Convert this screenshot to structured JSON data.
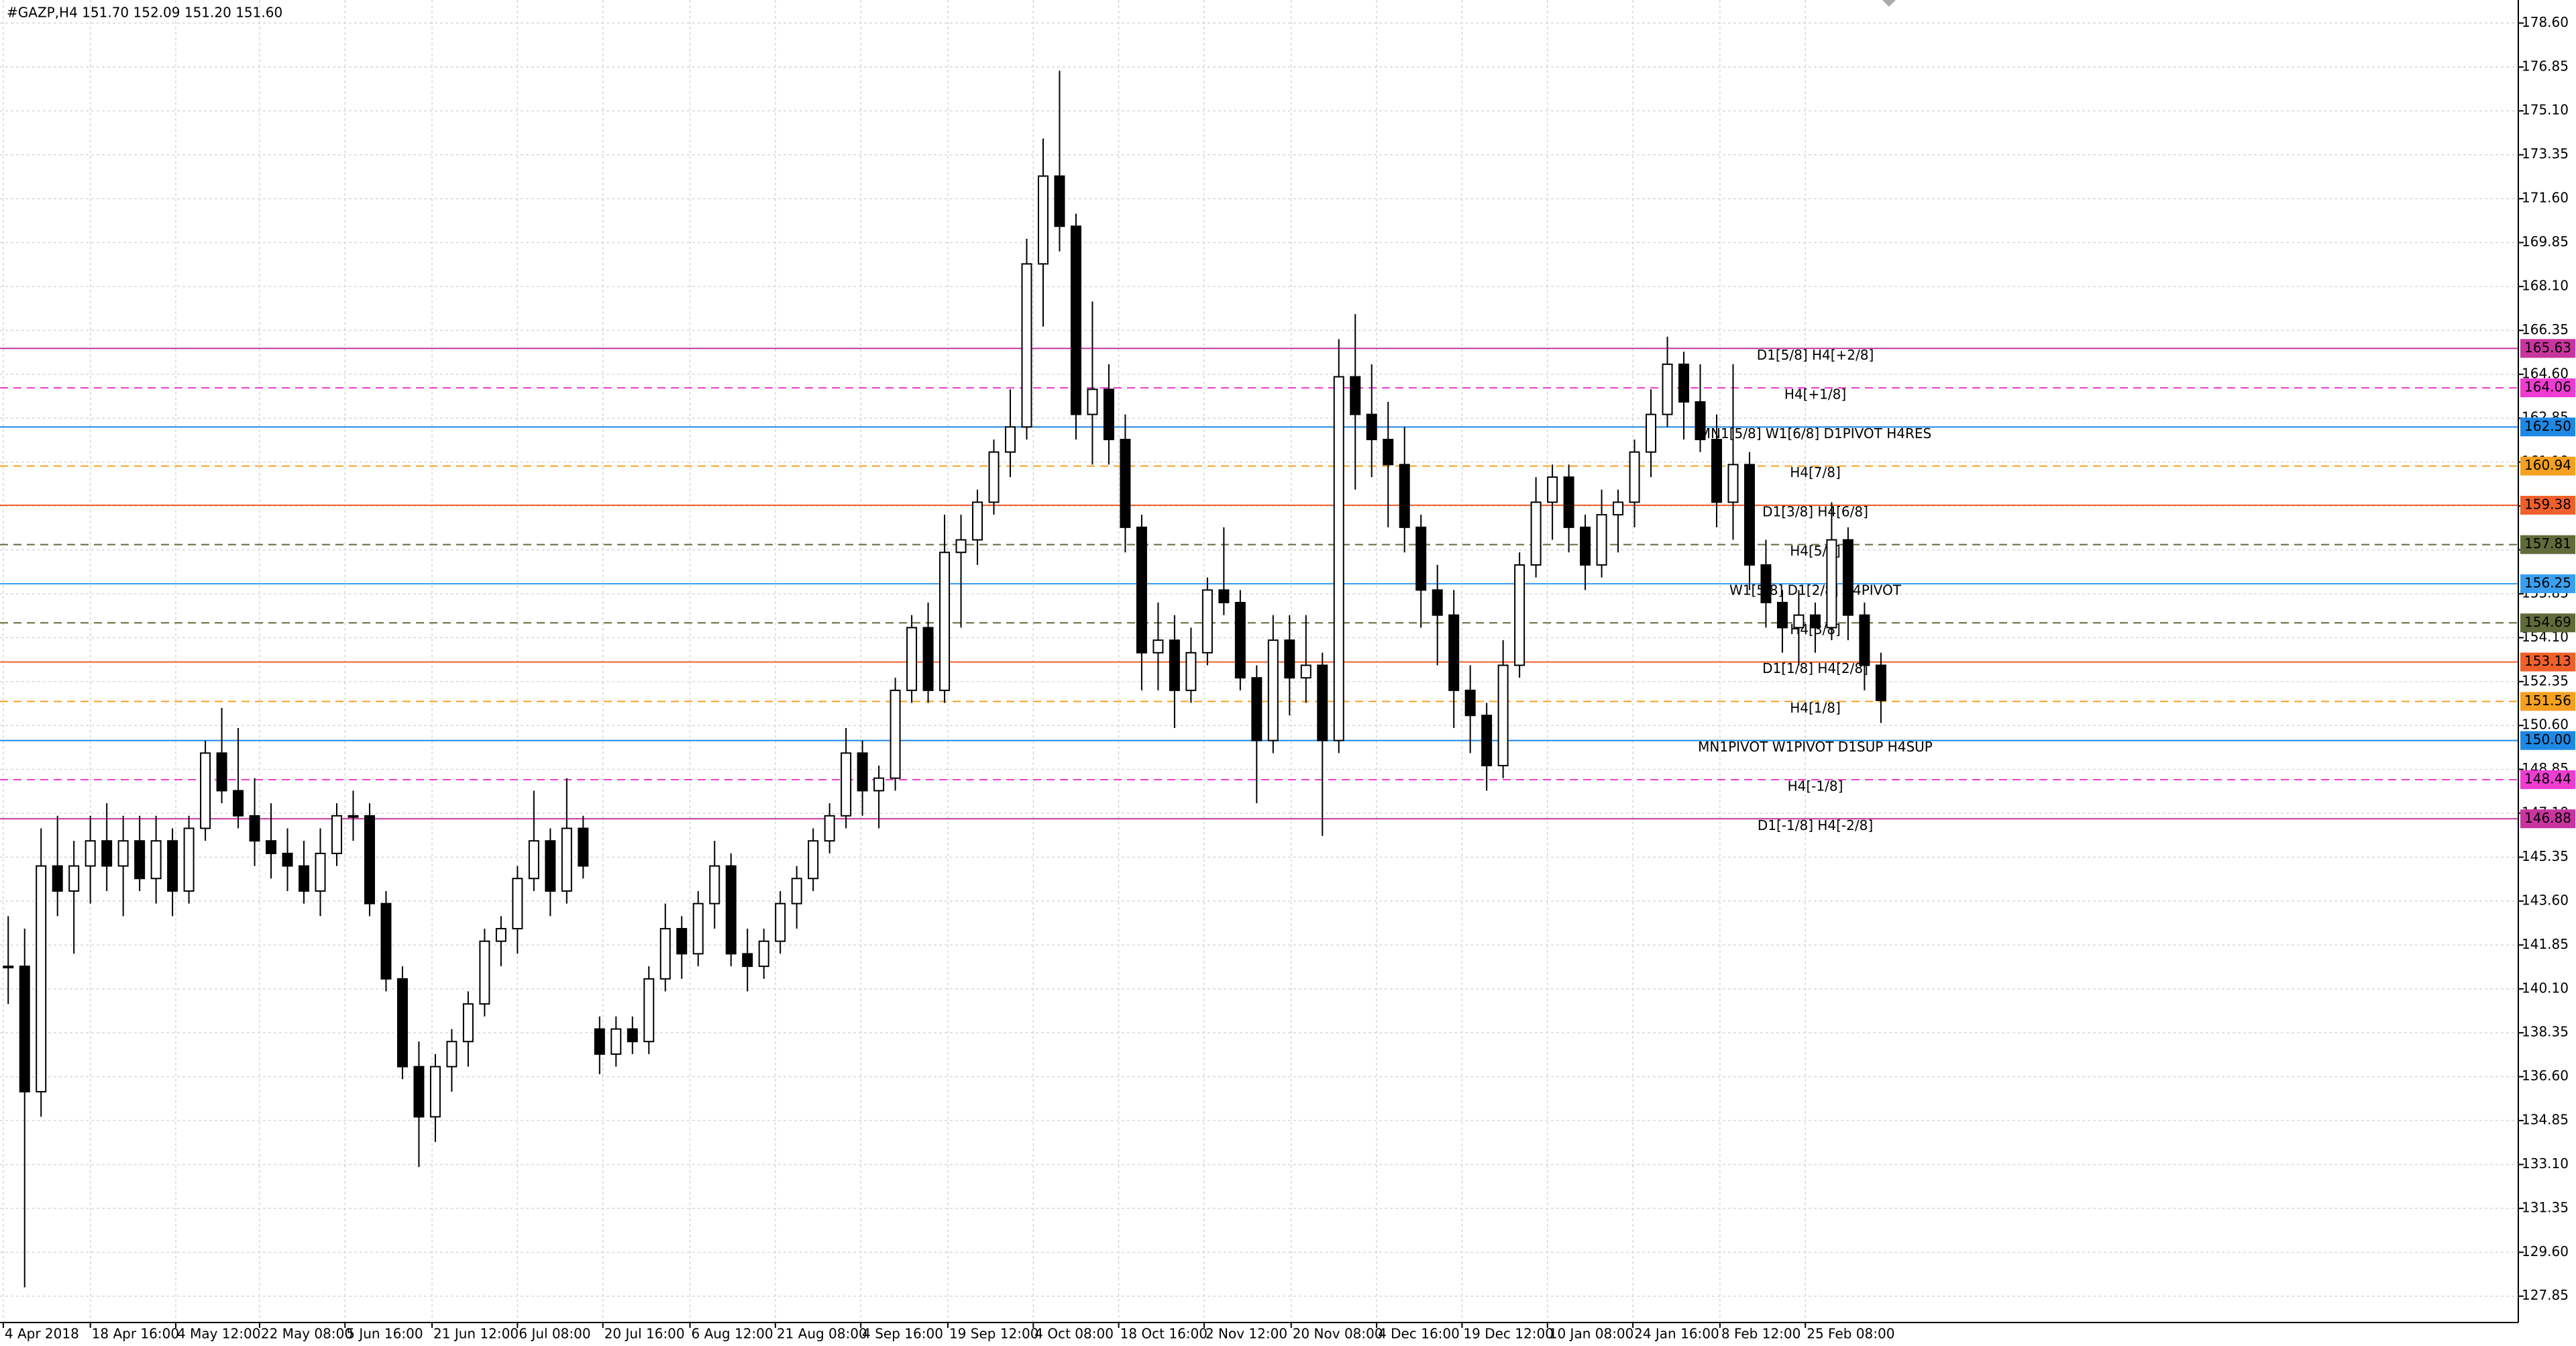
{
  "chart_data": {
    "type": "candlestick",
    "title": "#GAZP,H4  151.70 152.09 151.20 151.60",
    "up_color": "#ffffff",
    "down_color": "#000000",
    "outline_color": "#000000",
    "grid": true,
    "open": [
      141,
      141,
      136,
      145,
      144,
      145,
      146,
      145,
      146,
      144.5,
      146,
      144,
      146.5,
      149.5,
      148,
      147,
      146,
      145.5,
      145,
      144,
      145.5,
      147,
      147,
      143.5,
      140.5,
      137,
      135,
      137,
      138,
      139.5,
      142,
      142.5,
      144.5,
      146,
      144,
      146.5,
      138.5,
      137.5,
      138.5,
      138,
      140.5,
      142.5,
      141.5,
      143.5,
      145,
      141.5,
      141,
      142,
      143.5,
      144.5,
      146,
      147,
      149.5,
      148,
      148.5,
      152,
      154.5,
      152,
      157.5,
      158,
      159.5,
      161.5,
      162.5,
      169,
      172.5,
      170.5,
      163,
      164,
      162,
      158.5,
      153.5,
      154,
      152,
      153.5,
      156,
      155.5,
      152.5,
      150,
      154,
      152.5,
      153,
      150,
      164.5,
      163,
      162,
      161,
      158.5,
      156,
      155,
      152,
      151,
      149,
      153,
      157,
      159.5,
      160.5,
      158.5,
      157,
      159,
      159.5,
      161.5,
      163,
      165,
      163.5,
      162,
      159.5,
      161,
      157,
      155.5,
      154.5,
      155,
      154.5,
      158,
      155,
      153
    ],
    "high": [
      143,
      142.5,
      146.5,
      147,
      146,
      147,
      147.5,
      147,
      147,
      147,
      146.5,
      147,
      150,
      151.3,
      150.5,
      148.5,
      147.5,
      146.5,
      146,
      146.5,
      147.5,
      148,
      147.5,
      144,
      141,
      138,
      137.5,
      138.5,
      140,
      142.5,
      143,
      145,
      148,
      146.5,
      148.5,
      147,
      139,
      139,
      139,
      141,
      143.5,
      143,
      144,
      146,
      145.5,
      142.5,
      142.5,
      144,
      145,
      146.5,
      147.5,
      150.5,
      150,
      149,
      152.5,
      155,
      155.5,
      159,
      159,
      160,
      162,
      164,
      170,
      174,
      176.7,
      171,
      167.5,
      165,
      163,
      159,
      155.5,
      155,
      154.5,
      156.5,
      158.5,
      156,
      153,
      155,
      155,
      155,
      153.5,
      166,
      167,
      165,
      163.5,
      162.5,
      159,
      157,
      156,
      153,
      151.5,
      154,
      157.5,
      160.5,
      161,
      161,
      159,
      160,
      160,
      162,
      164,
      166.1,
      165.5,
      165,
      163,
      165,
      161.5,
      158,
      156,
      156,
      155.5,
      159.5,
      158.5,
      155.5,
      153.5
    ],
    "low": [
      139.5,
      128.2,
      135,
      143,
      141.5,
      143.5,
      144,
      143,
      144,
      143.5,
      143,
      143.5,
      146,
      147.5,
      146.5,
      145,
      144.5,
      144,
      143.5,
      143,
      145,
      146,
      143,
      140,
      136.5,
      133,
      134,
      136,
      137,
      139,
      141,
      141.5,
      144,
      143,
      143.5,
      144.5,
      136.7,
      137,
      137.5,
      137.5,
      140,
      140.5,
      141,
      142.5,
      141,
      140,
      140.5,
      141.5,
      142.5,
      144,
      145.5,
      146.5,
      147,
      146.5,
      148,
      151.5,
      151.5,
      151.5,
      154.5,
      157,
      159,
      160.5,
      162,
      166.5,
      169.5,
      162,
      161,
      161,
      157.5,
      152,
      152,
      150.5,
      151.5,
      153,
      155,
      152,
      147.5,
      149.5,
      151,
      151.5,
      146.2,
      149.5,
      160,
      160.5,
      158.5,
      157.5,
      154.5,
      153,
      150.5,
      149.5,
      148,
      148.5,
      152.5,
      156.5,
      158,
      157.5,
      156,
      156.5,
      157.5,
      158.5,
      160.5,
      162.5,
      162,
      161.5,
      158.5,
      158,
      156,
      154.5,
      153.5,
      153,
      153.5,
      154,
      154,
      152,
      150.7
    ],
    "close": [
      141,
      136,
      145,
      144,
      145,
      146,
      145,
      146,
      144.5,
      146,
      144,
      146.5,
      149.5,
      148,
      147,
      146,
      145.5,
      145,
      144,
      145.5,
      147,
      147,
      143.5,
      140.5,
      137,
      135,
      137,
      138,
      139.5,
      142,
      142.5,
      144.5,
      146,
      144,
      146.5,
      145,
      137.5,
      138.5,
      138,
      140.5,
      142.5,
      141.5,
      143.5,
      145,
      141.5,
      141,
      142,
      143.5,
      144.5,
      146,
      147,
      149.5,
      148,
      148.5,
      152,
      154.5,
      152,
      157.5,
      158,
      159.5,
      161.5,
      162.5,
      169,
      172.5,
      170.5,
      163,
      164,
      162,
      158.5,
      153.5,
      154,
      152,
      153.5,
      156,
      155.5,
      152.5,
      150,
      154,
      152.5,
      153,
      150,
      164.5,
      163,
      162,
      161,
      158.5,
      156,
      155,
      152,
      151,
      149,
      153,
      157,
      159.5,
      160.5,
      158.5,
      157,
      159,
      159.5,
      161.5,
      163,
      165,
      163.5,
      162,
      159.5,
      161,
      157,
      155.5,
      154.5,
      155,
      154.5,
      158,
      155,
      153,
      151.6
    ],
    "xlim": [
      0,
      153.3
    ],
    "xticks": [
      {
        "value": 0.2,
        "label": "4 Apr 2018"
      },
      {
        "value": 5.5,
        "label": "18 Apr 16:00"
      },
      {
        "value": 10.7,
        "label": "4 May 12:00"
      },
      {
        "value": 15.8,
        "label": "22 May 08:00"
      },
      {
        "value": 21,
        "label": "5 Jun 16:00"
      },
      {
        "value": 26.3,
        "label": "21 Jun 12:00"
      },
      {
        "value": 31.5,
        "label": "6 Jul 08:00"
      },
      {
        "value": 36.7,
        "label": "20 Jul 16:00"
      },
      {
        "value": 42,
        "label": "6 Aug 12:00"
      },
      {
        "value": 47.2,
        "label": "21 Aug 08:00"
      },
      {
        "value": 52.4,
        "label": "4 Sep 16:00"
      },
      {
        "value": 57.7,
        "label": "19 Sep 12:00"
      },
      {
        "value": 62.9,
        "label": "4 Oct 08:00"
      },
      {
        "value": 68.1,
        "label": "18 Oct 16:00"
      },
      {
        "value": 73.3,
        "label": "2 Nov 12:00"
      },
      {
        "value": 78.6,
        "label": "20 Nov 08:00"
      },
      {
        "value": 83.8,
        "label": "4 Dec 16:00"
      },
      {
        "value": 89,
        "label": "19 Dec 12:00"
      },
      {
        "value": 94.2,
        "label": "10 Jan 08:00"
      },
      {
        "value": 99.4,
        "label": "24 Jan 16:00"
      },
      {
        "value": 104.7,
        "label": "8 Feb 12:00"
      },
      {
        "value": 109.9,
        "label": "25 Feb 08:00"
      }
    ],
    "ylim": [
      126.8,
      179.52
    ],
    "yticks": [
      {
        "value": 178.6,
        "label": "178.60"
      },
      {
        "value": 176.85,
        "label": "176.85"
      },
      {
        "value": 175.1,
        "label": "175.10"
      },
      {
        "value": 173.35,
        "label": "173.35"
      },
      {
        "value": 171.6,
        "label": "171.60"
      },
      {
        "value": 169.85,
        "label": "169.85"
      },
      {
        "value": 168.1,
        "label": "168.10"
      },
      {
        "value": 166.35,
        "label": "166.35"
      },
      {
        "value": 164.6,
        "label": "164.60"
      },
      {
        "value": 162.85,
        "label": "162.85"
      },
      {
        "value": 161.1,
        "label": "161.10"
      },
      {
        "value": 159.35,
        "label": "159.35"
      },
      {
        "value": 157.6,
        "label": "157.60"
      },
      {
        "value": 155.85,
        "label": "155.85"
      },
      {
        "value": 154.1,
        "label": "154.10"
      },
      {
        "value": 152.35,
        "label": "152.35"
      },
      {
        "value": 150.6,
        "label": "150.60"
      },
      {
        "value": 148.85,
        "label": "148.85"
      },
      {
        "value": 147.1,
        "label": "147.10"
      },
      {
        "value": 145.35,
        "label": "145.35"
      },
      {
        "value": 143.6,
        "label": "143.60"
      },
      {
        "value": 141.85,
        "label": "141.85"
      },
      {
        "value": 140.1,
        "label": "140.10"
      },
      {
        "value": 138.35,
        "label": "138.35"
      },
      {
        "value": 136.6,
        "label": "136.60"
      },
      {
        "value": 134.85,
        "label": "134.85"
      },
      {
        "value": 133.1,
        "label": "133.10"
      },
      {
        "value": 131.35,
        "label": "131.35"
      },
      {
        "value": 129.6,
        "label": "129.60"
      },
      {
        "value": 127.85,
        "label": "127.85"
      }
    ],
    "levels": [
      {
        "value": 165.63,
        "value_label": "165.63",
        "label": "D1[5/8] H4[+2/8]",
        "color": "#c8359f",
        "dash": false
      },
      {
        "value": 164.06,
        "value_label": "164.06",
        "label": "H4[+1/8]",
        "color": "#f03cd2",
        "dash": true
      },
      {
        "value": 162.5,
        "value_label": "162.50",
        "label": "MN1[5/8] W1[6/8] D1PIVOT H4RES",
        "color": "#1e88e5",
        "dash": false
      },
      {
        "value": 160.94,
        "value_label": "160.94",
        "label": "H4[7/8]",
        "color": "#f5a020",
        "dash": true
      },
      {
        "value": 159.38,
        "value_label": "159.38",
        "label": "D1[3/8] H4[6/8]",
        "color": "#f0602a",
        "dash": false
      },
      {
        "value": 157.81,
        "value_label": "157.81",
        "label": "H4[5/8]",
        "color": "#5f6b3a",
        "dash": true
      },
      {
        "value": 156.25,
        "value_label": "156.25",
        "label": "W1[5/8] D1[2/8] H4PIVOT",
        "color": "#3a9ff0",
        "dash": false
      },
      {
        "value": 154.69,
        "value_label": "154.69",
        "label": "H4[3/8]",
        "color": "#5f6b3a",
        "dash": true
      },
      {
        "value": 153.13,
        "value_label": "153.13",
        "label": "D1[1/8] H4[2/8]",
        "color": "#f0602a",
        "dash": false
      },
      {
        "value": 151.56,
        "value_label": "151.56",
        "label": "H4[1/8]",
        "color": "#f5a020",
        "dash": true
      },
      {
        "value": 150,
        "value_label": "150.00",
        "label": "MN1PIVOT W1PIVOT D1SUP H4SUP",
        "color": "#1e88e5",
        "dash": false
      },
      {
        "value": 148.44,
        "value_label": "148.44",
        "label": "H4[-1/8]",
        "color": "#f03cd2",
        "dash": true
      },
      {
        "value": 146.88,
        "value_label": "146.88",
        "label": "D1[-1/8] H4[-2/8]",
        "color": "#c8359f",
        "dash": false
      }
    ]
  }
}
